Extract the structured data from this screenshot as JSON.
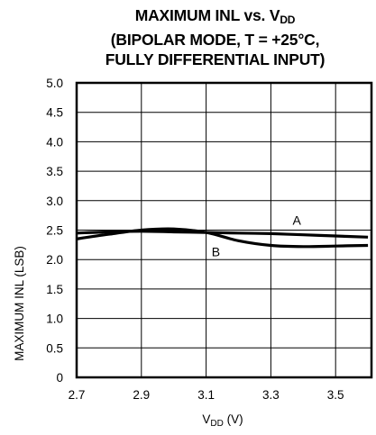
{
  "chart_data": {
    "type": "line",
    "title_line1_main": "MAXIMUM INL vs. V",
    "title_line1_sub": "DD",
    "title_line2": "(BIPOLAR MODE, T = +25°C,",
    "title_line3": "FULLY DIFFERENTIAL INPUT)",
    "ylabel": "MAXIMUM INL (LSB)",
    "xlabel_main": "V",
    "xlabel_sub": "DD",
    "xlabel_unit": " (V)",
    "xlim": [
      2.7,
      3.6
    ],
    "ylim": [
      0,
      5.0
    ],
    "x_ticks": [
      "2.7",
      "2.9",
      "3.1",
      "3.3",
      "3.5"
    ],
    "y_ticks": [
      "0",
      "0.5",
      "1.0",
      "1.5",
      "2.0",
      "2.5",
      "3.0",
      "3.5",
      "4.0",
      "4.5",
      "5.0"
    ],
    "grid": true,
    "series": [
      {
        "name": "A",
        "x": [
          2.7,
          2.8,
          2.9,
          3.0,
          3.1,
          3.2,
          3.3,
          3.4,
          3.5,
          3.6
        ],
        "y": [
          2.45,
          2.47,
          2.48,
          2.47,
          2.46,
          2.45,
          2.44,
          2.42,
          2.4,
          2.38
        ]
      },
      {
        "name": "B",
        "x": [
          2.7,
          2.8,
          2.9,
          3.0,
          3.1,
          3.2,
          3.3,
          3.4,
          3.5,
          3.6
        ],
        "y": [
          2.35,
          2.43,
          2.5,
          2.52,
          2.46,
          2.32,
          2.24,
          2.22,
          2.23,
          2.24
        ]
      }
    ],
    "annotations": [
      "A",
      "B"
    ]
  }
}
